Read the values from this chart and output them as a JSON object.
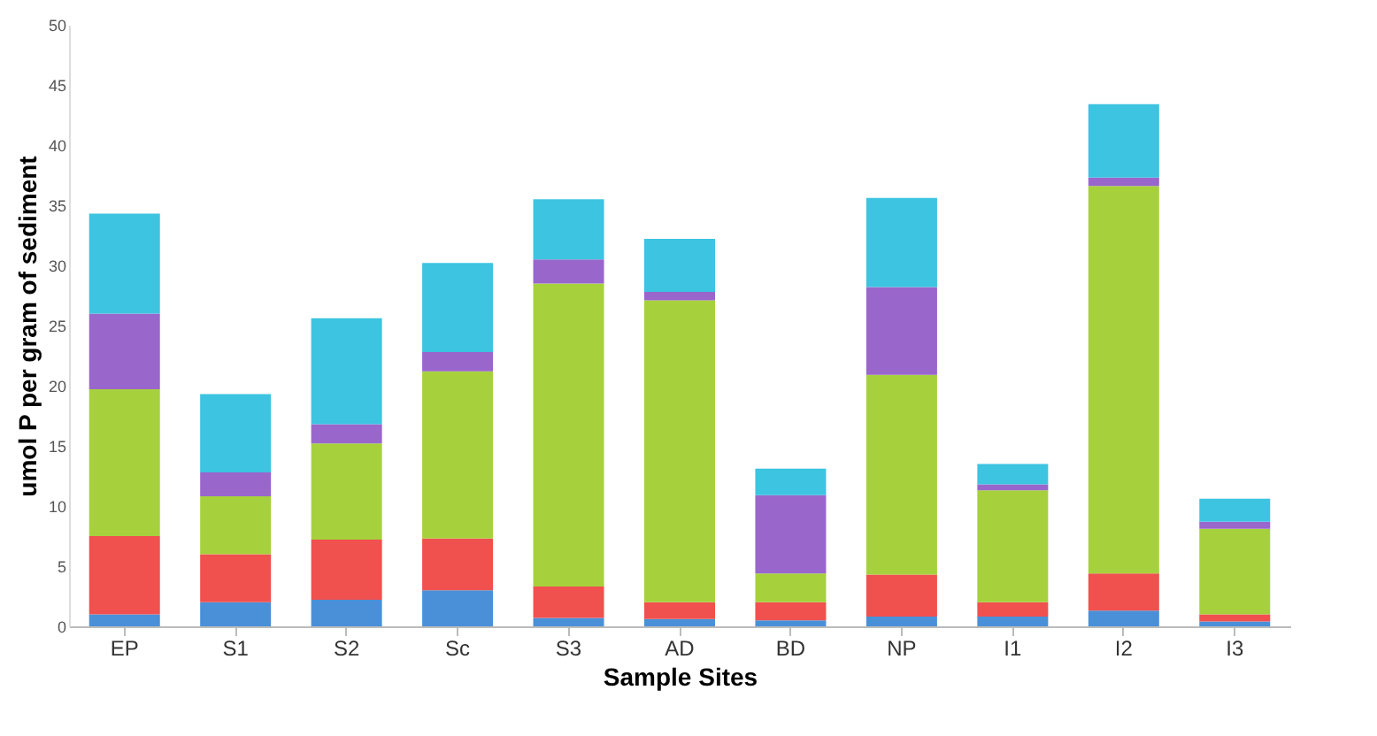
{
  "chart_data": {
    "type": "bar",
    "stacked": true,
    "xlabel": "Sample Sites",
    "ylabel": "umol P per gram of sediment",
    "categories": [
      "EP",
      "S1",
      "S2",
      "Sc",
      "S3",
      "AD",
      "BD",
      "NP",
      "I1",
      "I2",
      "I3"
    ],
    "series": [
      {
        "color": "#4a90d9",
        "values": [
          1,
          2,
          2.2,
          3,
          0.7,
          0.6,
          0.5,
          0.8,
          0.8,
          1.3,
          0.4
        ]
      },
      {
        "color": "#f0504e",
        "values": [
          6.5,
          4,
          5,
          4.3,
          2.6,
          1.4,
          1.5,
          3.5,
          1.2,
          3.1,
          0.6
        ]
      },
      {
        "color": "#a6d13c",
        "values": [
          12.2,
          4.8,
          8,
          13.9,
          25.2,
          25.1,
          2.4,
          16.6,
          9.3,
          32.2,
          7.1
        ]
      },
      {
        "color": "#9966cc",
        "values": [
          6.3,
          2,
          1.6,
          1.6,
          2,
          0.7,
          6.5,
          7.3,
          0.5,
          0.7,
          0.6
        ]
      },
      {
        "color": "#3cc4e0",
        "values": [
          8.3,
          6.5,
          8.8,
          7.4,
          5,
          4.4,
          2.2,
          7.4,
          1.7,
          6.1,
          1.9
        ]
      }
    ],
    "ylim": [
      0,
      50
    ],
    "yticks": [
      0,
      5,
      10,
      15,
      20,
      25,
      30,
      35,
      40,
      45,
      50
    ]
  }
}
